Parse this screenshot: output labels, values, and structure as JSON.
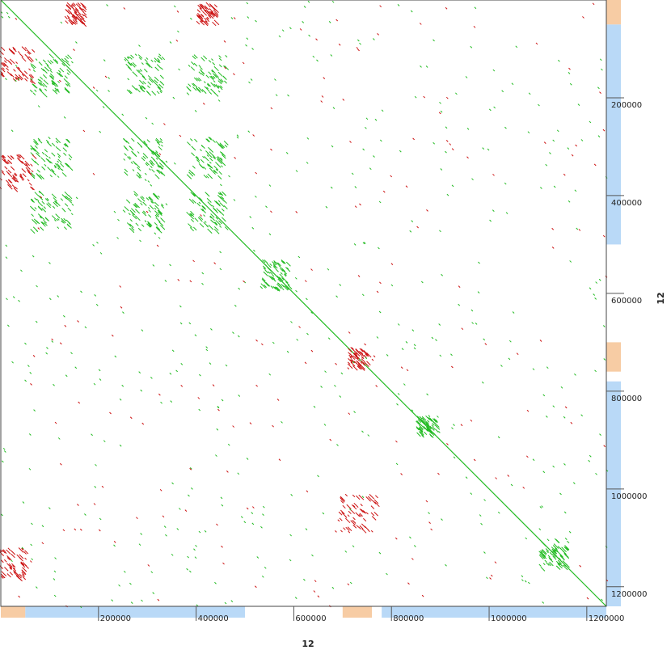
{
  "chart_data": {
    "type": "scatter",
    "title": "",
    "xlabel": "12",
    "ylabel": "12",
    "xlim": [
      0,
      1240000
    ],
    "ylim": [
      0,
      1240000
    ],
    "y_inverted": true,
    "grid": false,
    "legend": "none",
    "x_ticks": [
      {
        "value": 200000,
        "label": "200000"
      },
      {
        "value": 400000,
        "label": "400000"
      },
      {
        "value": 600000,
        "label": "600000"
      },
      {
        "value": 800000,
        "label": "800000"
      },
      {
        "value": 1000000,
        "label": "1000000"
      },
      {
        "value": 1200000,
        "label": "1200000"
      }
    ],
    "y_ticks": [
      {
        "value": 200000,
        "label": "200000"
      },
      {
        "value": 400000,
        "label": "400000"
      },
      {
        "value": 600000,
        "label": "600000"
      },
      {
        "value": 800000,
        "label": "800000"
      },
      {
        "value": 1000000,
        "label": "1000000"
      },
      {
        "value": 1200000,
        "label": "1200000"
      }
    ],
    "colors": {
      "forward": "#22bb22",
      "reverse": "#cc1111",
      "coverage_blue": "#a8d0f5",
      "coverage_orange": "#f6c79a",
      "frame": "#444444"
    },
    "series": [
      {
        "role": "forward-diagonal",
        "segments": [
          [
            0,
            0,
            1240000,
            1240000
          ]
        ]
      },
      {
        "role": "forward-alignments",
        "blocks": [
          [
            100000,
            150000,
            80000
          ],
          [
            290000,
            150000,
            80000
          ],
          [
            420000,
            150000,
            80000
          ],
          [
            100000,
            320000,
            80000
          ],
          [
            290000,
            320000,
            80000
          ],
          [
            420000,
            320000,
            80000
          ],
          [
            100000,
            430000,
            80000
          ],
          [
            290000,
            430000,
            80000
          ],
          [
            420000,
            430000,
            80000
          ],
          [
            560000,
            560000,
            60000
          ],
          [
            870000,
            870000,
            40000
          ],
          [
            1130000,
            1130000,
            60000
          ]
        ]
      },
      {
        "role": "reverse-alignments",
        "blocks": [
          [
            30000,
            130000,
            70000
          ],
          [
            30000,
            350000,
            70000
          ],
          [
            730000,
            730000,
            40000
          ],
          [
            730000,
            1050000,
            80000
          ],
          [
            20000,
            1150000,
            60000
          ],
          [
            150000,
            25000,
            40000
          ],
          [
            420000,
            25000,
            40000
          ]
        ]
      }
    ],
    "coverage": {
      "x_axis": {
        "blue_regions": [
          [
            50000,
            500000
          ],
          [
            780000,
            1240000
          ]
        ],
        "orange_regions": [
          [
            0,
            50000
          ],
          [
            700000,
            760000
          ]
        ]
      },
      "y_axis": {
        "blue_regions": [
          [
            50000,
            500000
          ],
          [
            780000,
            1240000
          ]
        ],
        "orange_regions": [
          [
            0,
            50000
          ],
          [
            700000,
            760000
          ]
        ]
      }
    }
  }
}
